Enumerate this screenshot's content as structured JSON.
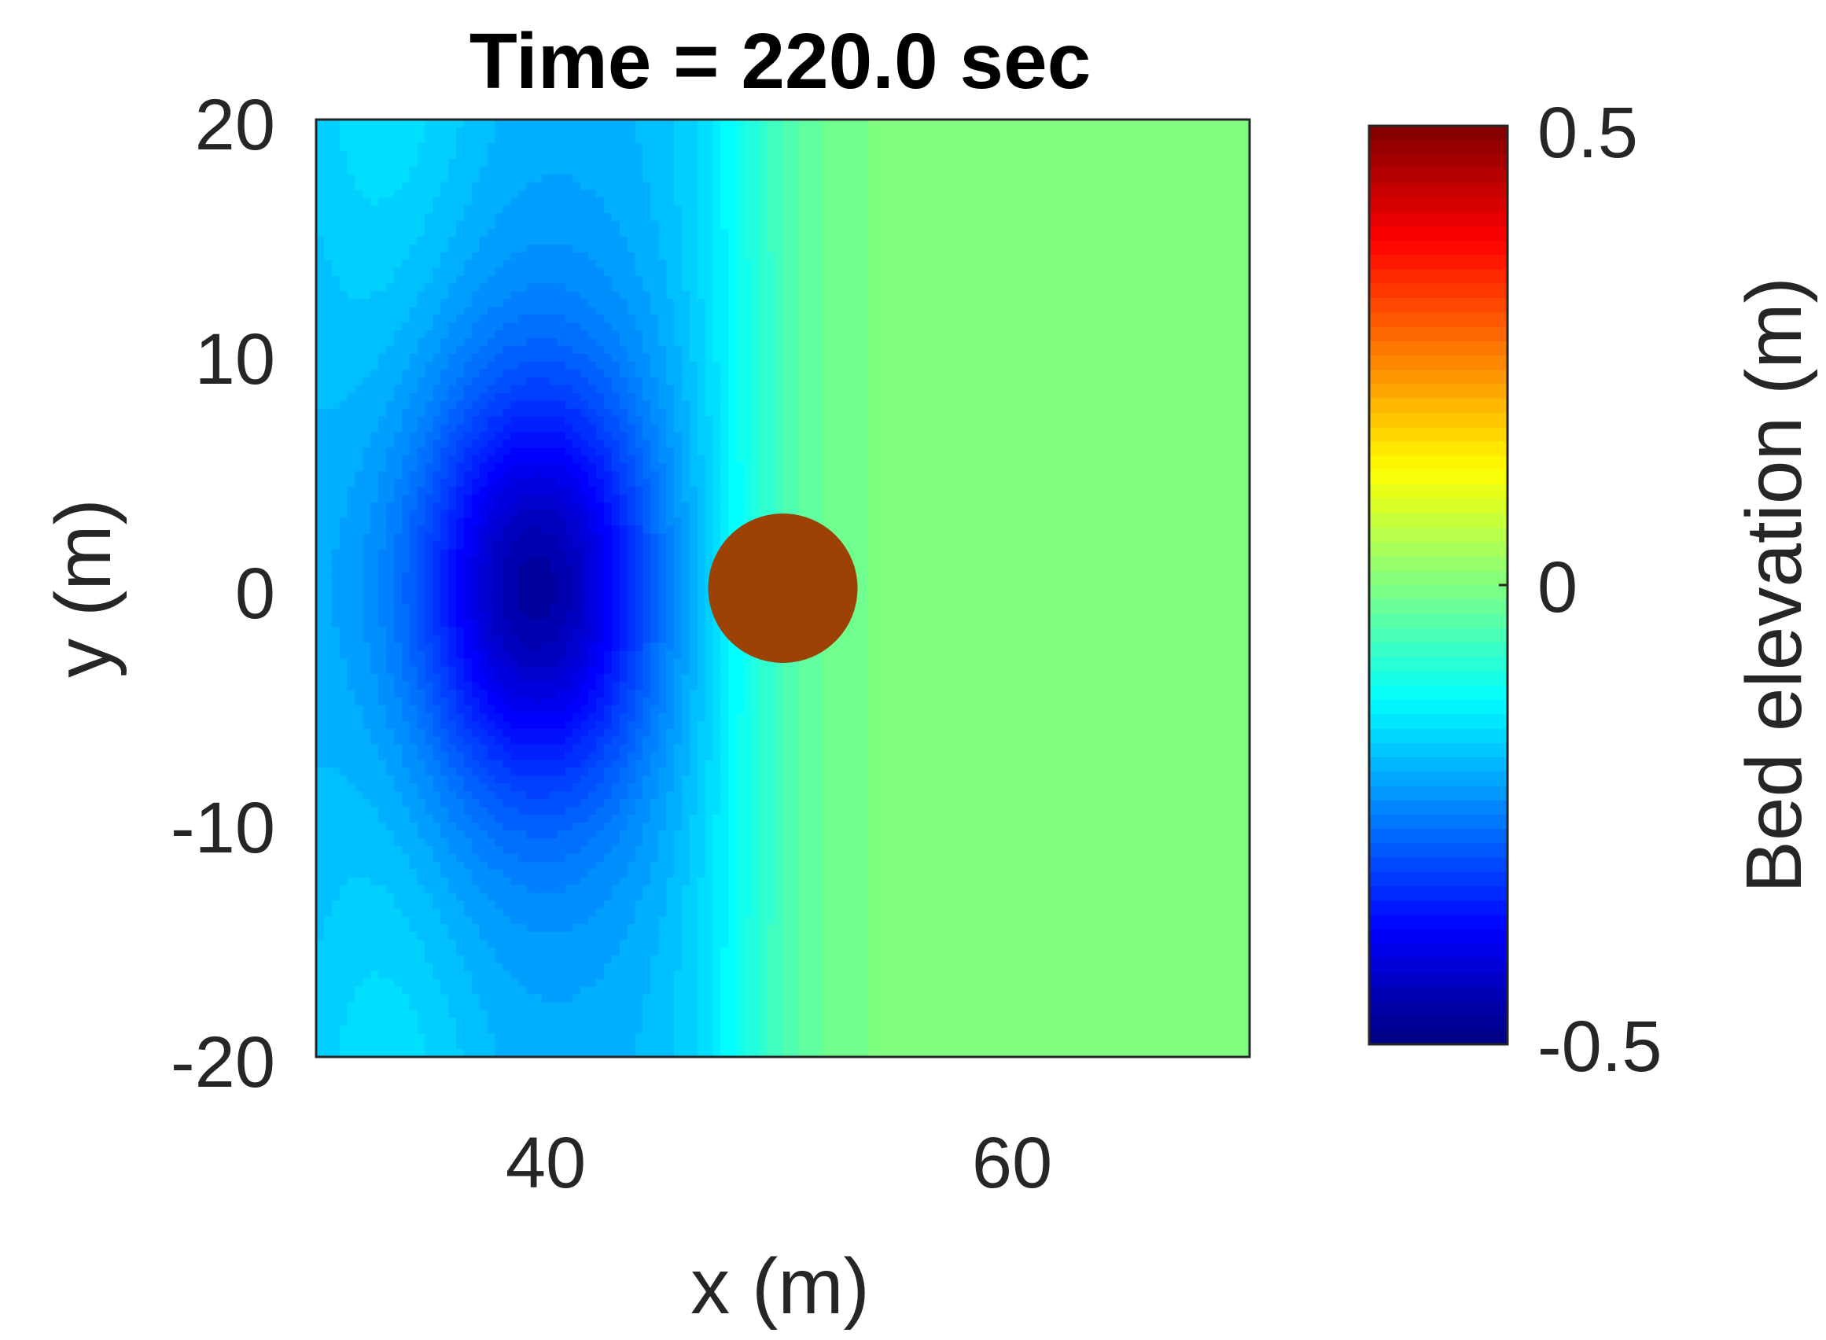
{
  "chart_data": {
    "type": "heatmap",
    "title": "Time = 220.0 sec",
    "xlabel": "x (m)",
    "ylabel": "y (m)",
    "xlim": [
      30,
      70
    ],
    "ylim": [
      -20,
      20
    ],
    "x_ticks": [
      40,
      60
    ],
    "y_ticks": [
      20,
      10,
      0,
      -10,
      -20
    ],
    "x_tick_labels": [
      "40",
      "60"
    ],
    "y_tick_labels": [
      "20",
      "10",
      "0",
      "-10",
      "-20"
    ],
    "grid": false,
    "colorbar": {
      "label": "Bed elevation (m)",
      "colormap": "jet",
      "range": [
        -0.5,
        0.5
      ],
      "ticks": [
        0.5,
        0,
        -0.5
      ],
      "tick_labels": [
        "0.5",
        "0",
        "-0.5"
      ]
    },
    "field": {
      "description_values": "bed elevation in m",
      "upstream_level": -0.2,
      "downstream_level": 0.0,
      "scour_hole": {
        "center_x": 39.5,
        "center_y": 0.0,
        "min_elevation": -0.47,
        "sigma_x_m": 5.0,
        "sigma_y_m": 8.5
      },
      "pier": {
        "center_x": 50.0,
        "center_y": 0.0,
        "radius_m": 3.2,
        "elevation": 0.4
      }
    },
    "colors": {
      "pier_fill": "#9c4205",
      "axes_frame": "#262626"
    }
  }
}
